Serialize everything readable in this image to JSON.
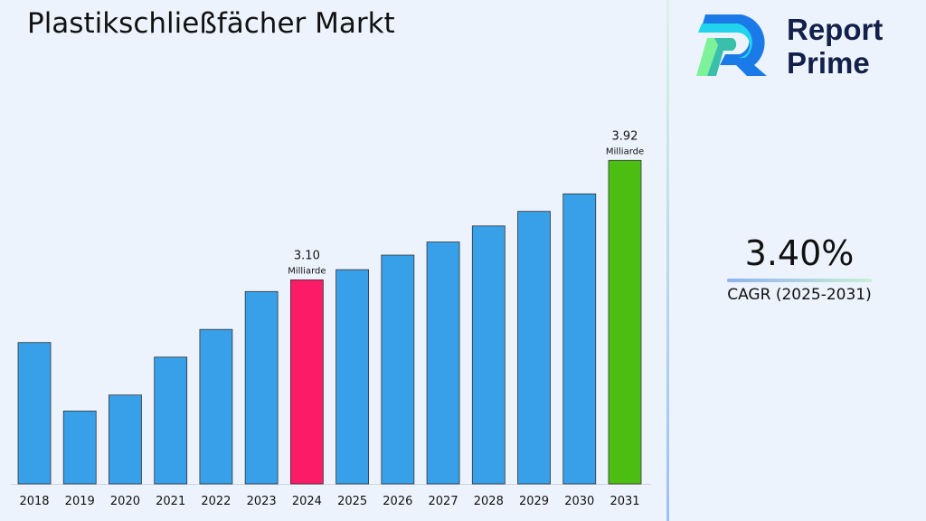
{
  "title": "Plastikschließfächer Markt",
  "logo": {
    "line1": "Report",
    "line2": "Prime"
  },
  "cagr": {
    "value": "3.40%",
    "label": "CAGR (2025-2031)"
  },
  "colors": {
    "default": "#38a0e8",
    "highlight_2024": "#fc1b66",
    "highlight_2031": "#4cbe12",
    "background": "#edf3fc"
  },
  "chart_data": {
    "type": "bar",
    "title": "Plastikschließfächer Markt",
    "xlabel": "",
    "ylabel": "",
    "categories": [
      "2018",
      "2019",
      "2020",
      "2021",
      "2022",
      "2023",
      "2024",
      "2025",
      "2026",
      "2027",
      "2028",
      "2029",
      "2030",
      "2031"
    ],
    "values": [
      2.67,
      2.2,
      2.31,
      2.57,
      2.76,
      3.02,
      3.1,
      3.17,
      3.27,
      3.36,
      3.47,
      3.57,
      3.69,
      3.92
    ],
    "ylim": [
      1.7,
      4.35
    ],
    "grid": false,
    "annotations": [
      {
        "category": "2024",
        "value": "3.10",
        "unit": "Milliarde"
      },
      {
        "category": "2031",
        "value": "3.92",
        "unit": "Milliarde"
      }
    ]
  }
}
